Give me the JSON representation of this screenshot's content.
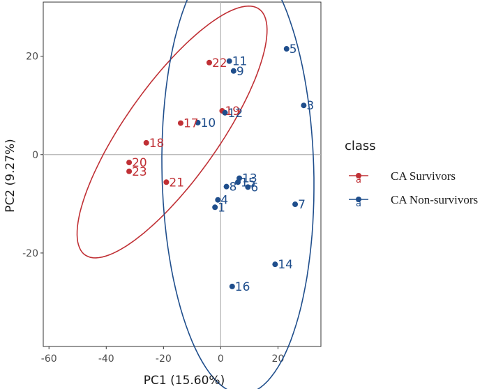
{
  "chart_data": {
    "type": "scatter",
    "title": "",
    "xlabel": "PC1 (15.60%)",
    "ylabel": "PC2 (9.27%)",
    "xlim": [
      -62,
      35
    ],
    "ylim": [
      -39,
      31
    ],
    "xticks": [
      -60,
      -40,
      -20,
      0,
      20
    ],
    "yticks": [
      -20,
      0,
      20
    ],
    "grid": false,
    "zero_lines": true,
    "legend": {
      "title": "class",
      "position": "right",
      "key_glyph": "a"
    },
    "series": [
      {
        "name": "CA Survivors",
        "color": "#C03035",
        "points": [
          {
            "label": "22",
            "x": -4,
            "y": 18.7
          },
          {
            "label": "19",
            "x": 0.5,
            "y": 8.9
          },
          {
            "label": "17",
            "x": -14,
            "y": 6.4
          },
          {
            "label": "18",
            "x": -26,
            "y": 2.4
          },
          {
            "label": "20",
            "x": -32,
            "y": -1.6
          },
          {
            "label": "23",
            "x": -32,
            "y": -3.4
          },
          {
            "label": "21",
            "x": -19,
            "y": -5.6
          }
        ],
        "ellipse": {
          "center": [
            -17,
            4.6
          ],
          "semi_axes": [
            40,
            12.5
          ],
          "angle_deg": 36
        }
      },
      {
        "name": "CA Non-survivors",
        "color": "#1F4E8C",
        "points": [
          {
            "label": "11",
            "x": 3,
            "y": 19
          },
          {
            "label": "9",
            "x": 4.5,
            "y": 17
          },
          {
            "label": "5",
            "x": 23,
            "y": 21.5
          },
          {
            "label": "3",
            "x": 29,
            "y": 10
          },
          {
            "label": "12",
            "x": 1.5,
            "y": 8.5
          },
          {
            "label": "10",
            "x": -8,
            "y": 6.5
          },
          {
            "label": "13",
            "x": 6.5,
            "y": -4.8
          },
          {
            "label": "15",
            "x": 6,
            "y": -5.6
          },
          {
            "label": "8",
            "x": 2,
            "y": -6.5
          },
          {
            "label": "6",
            "x": 9.5,
            "y": -6.6
          },
          {
            "label": "4",
            "x": -1,
            "y": -9.2
          },
          {
            "label": "1",
            "x": -2,
            "y": -10.7
          },
          {
            "label": "7",
            "x": 26,
            "y": -10.1
          },
          {
            "label": "14",
            "x": 19,
            "y": -22.3
          },
          {
            "label": "16",
            "x": 4,
            "y": -26.8
          }
        ],
        "ellipse": {
          "center": [
            6,
            -3.7
          ],
          "semi_axes": [
            45,
            26.5
          ],
          "angle_deg": 93
        }
      }
    ]
  }
}
